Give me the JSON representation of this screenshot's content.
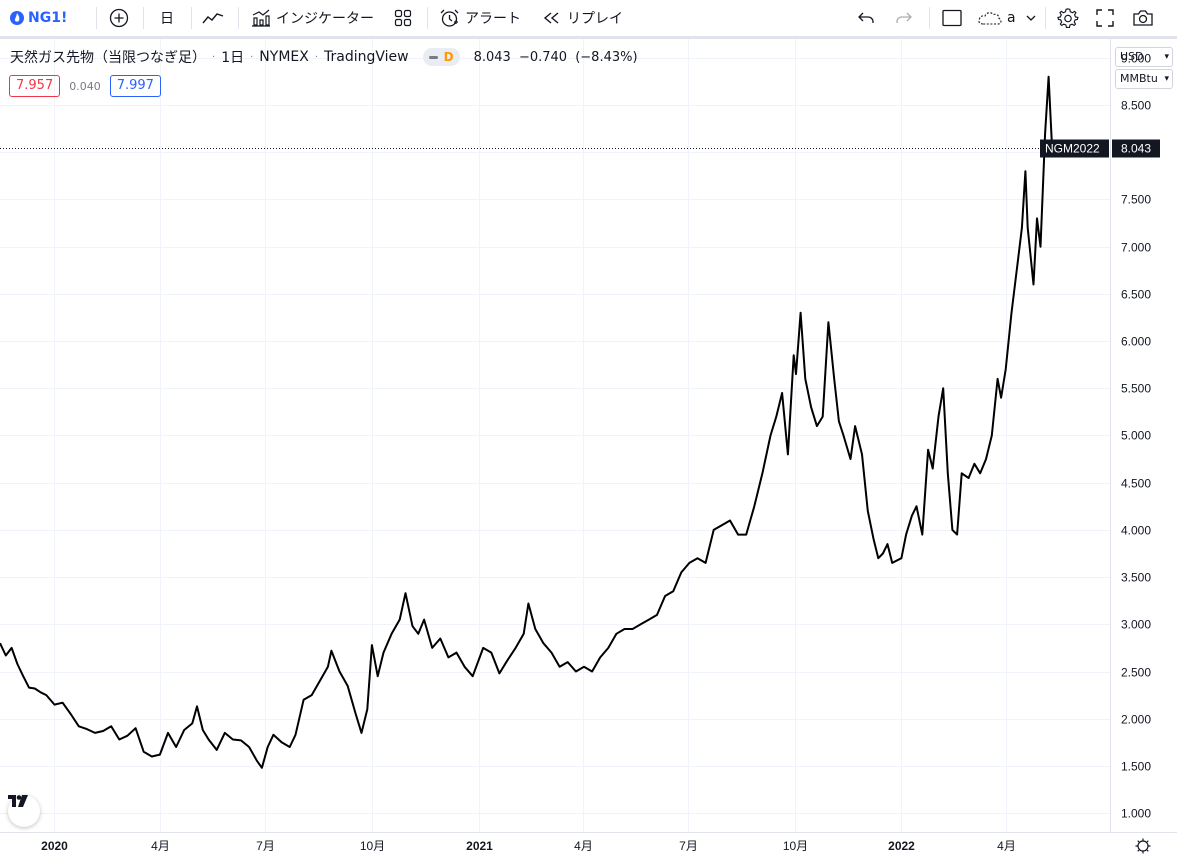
{
  "toolbar": {
    "symbol": "NG1!",
    "interval": "日",
    "indicators_label": "インジケーター",
    "alert_label": "アラート",
    "replay_label": "リプレイ",
    "layout_name": "a"
  },
  "legend": {
    "title": "天然ガス先物（当限つなぎ足）",
    "interval": "1日",
    "exchange": "NYMEX",
    "source": "TradingView",
    "badge": "D",
    "last_value": "8.043",
    "change": "−0.740",
    "change_pct": "(−8.43%)"
  },
  "quote": {
    "bid": "7.957",
    "spread": "0.040",
    "ask": "7.997"
  },
  "units": {
    "currency": "USD",
    "unit": "MMBtu"
  },
  "price_label": {
    "name": "NGM2022",
    "value": "8.043"
  },
  "colors": {
    "line": "#000000",
    "bid": "#f23645",
    "ask": "#2962ff",
    "accent": "#2962ff",
    "label_bg": "#131722"
  },
  "chart_data": {
    "type": "line",
    "title": "天然ガス先物（当限つなぎ足）",
    "xlabel": "",
    "ylabel": "",
    "x_range": [
      "2019-11-15",
      "2022-06-30"
    ],
    "ylim": [
      0.8,
      9.2
    ],
    "y_ticks": [
      1.0,
      1.5,
      2.0,
      2.5,
      3.0,
      3.5,
      4.0,
      4.5,
      5.0,
      5.5,
      6.0,
      6.5,
      7.0,
      7.5,
      8.0,
      8.5,
      9.0
    ],
    "y_tick_labels": [
      "1.000",
      "1.500",
      "2.000",
      "2.500",
      "3.000",
      "3.500",
      "4.000",
      "4.500",
      "5.000",
      "5.500",
      "6.000",
      "6.500",
      "7.000",
      "7.500",
      "8.000",
      "8.500",
      "9.000"
    ],
    "x_ticks": [
      {
        "date": "2020-01-01",
        "label": "2020",
        "major": true
      },
      {
        "date": "2020-04-01",
        "label": "4月",
        "major": false
      },
      {
        "date": "2020-07-01",
        "label": "7月",
        "major": false
      },
      {
        "date": "2020-10-01",
        "label": "10月",
        "major": false
      },
      {
        "date": "2021-01-01",
        "label": "2021",
        "major": true
      },
      {
        "date": "2021-04-01",
        "label": "4月",
        "major": false
      },
      {
        "date": "2021-07-01",
        "label": "7月",
        "major": false
      },
      {
        "date": "2021-10-01",
        "label": "10月",
        "major": false
      },
      {
        "date": "2022-01-01",
        "label": "2022",
        "major": true
      },
      {
        "date": "2022-04-01",
        "label": "4月",
        "major": false
      }
    ],
    "last_price": 8.043,
    "grid": true,
    "series": [
      {
        "name": "",
        "points": [
          [
            "2019-11-15",
            2.8
          ],
          [
            "2019-11-20",
            2.67
          ],
          [
            "2019-11-25",
            2.75
          ],
          [
            "2019-11-30",
            2.58
          ],
          [
            "2019-12-05",
            2.45
          ],
          [
            "2019-12-10",
            2.33
          ],
          [
            "2019-12-15",
            2.32
          ],
          [
            "2019-12-20",
            2.28
          ],
          [
            "2019-12-25",
            2.25
          ],
          [
            "2020-01-01",
            2.15
          ],
          [
            "2020-01-08",
            2.17
          ],
          [
            "2020-01-15",
            2.05
          ],
          [
            "2020-01-22",
            1.92
          ],
          [
            "2020-01-29",
            1.89
          ],
          [
            "2020-02-05",
            1.85
          ],
          [
            "2020-02-12",
            1.87
          ],
          [
            "2020-02-19",
            1.92
          ],
          [
            "2020-02-26",
            1.78
          ],
          [
            "2020-03-04",
            1.82
          ],
          [
            "2020-03-11",
            1.9
          ],
          [
            "2020-03-18",
            1.65
          ],
          [
            "2020-03-25",
            1.6
          ],
          [
            "2020-04-01",
            1.62
          ],
          [
            "2020-04-08",
            1.85
          ],
          [
            "2020-04-15",
            1.7
          ],
          [
            "2020-04-22",
            1.88
          ],
          [
            "2020-04-29",
            1.95
          ],
          [
            "2020-05-03",
            2.13
          ],
          [
            "2020-05-08",
            1.88
          ],
          [
            "2020-05-13",
            1.78
          ],
          [
            "2020-05-20",
            1.67
          ],
          [
            "2020-05-27",
            1.85
          ],
          [
            "2020-06-03",
            1.78
          ],
          [
            "2020-06-10",
            1.77
          ],
          [
            "2020-06-17",
            1.7
          ],
          [
            "2020-06-24",
            1.55
          ],
          [
            "2020-06-28",
            1.48
          ],
          [
            "2020-07-03",
            1.7
          ],
          [
            "2020-07-08",
            1.83
          ],
          [
            "2020-07-15",
            1.75
          ],
          [
            "2020-07-22",
            1.7
          ],
          [
            "2020-07-27",
            1.83
          ],
          [
            "2020-08-03",
            2.2
          ],
          [
            "2020-08-10",
            2.25
          ],
          [
            "2020-08-17",
            2.4
          ],
          [
            "2020-08-24",
            2.55
          ],
          [
            "2020-08-27",
            2.72
          ],
          [
            "2020-09-03",
            2.5
          ],
          [
            "2020-09-10",
            2.35
          ],
          [
            "2020-09-17",
            2.05
          ],
          [
            "2020-09-22",
            1.85
          ],
          [
            "2020-09-27",
            2.1
          ],
          [
            "2020-10-01",
            2.78
          ],
          [
            "2020-10-06",
            2.45
          ],
          [
            "2020-10-11",
            2.7
          ],
          [
            "2020-10-18",
            2.9
          ],
          [
            "2020-10-25",
            3.05
          ],
          [
            "2020-10-30",
            3.33
          ],
          [
            "2020-11-05",
            2.98
          ],
          [
            "2020-11-10",
            2.9
          ],
          [
            "2020-11-15",
            3.05
          ],
          [
            "2020-11-22",
            2.75
          ],
          [
            "2020-11-29",
            2.85
          ],
          [
            "2020-12-06",
            2.65
          ],
          [
            "2020-12-13",
            2.7
          ],
          [
            "2020-12-20",
            2.55
          ],
          [
            "2020-12-27",
            2.45
          ],
          [
            "2021-01-05",
            2.75
          ],
          [
            "2021-01-12",
            2.7
          ],
          [
            "2021-01-19",
            2.48
          ],
          [
            "2021-01-26",
            2.62
          ],
          [
            "2021-02-02",
            2.75
          ],
          [
            "2021-02-09",
            2.9
          ],
          [
            "2021-02-13",
            3.22
          ],
          [
            "2021-02-19",
            2.95
          ],
          [
            "2021-02-26",
            2.8
          ],
          [
            "2021-03-05",
            2.7
          ],
          [
            "2021-03-12",
            2.55
          ],
          [
            "2021-03-19",
            2.6
          ],
          [
            "2021-03-26",
            2.5
          ],
          [
            "2021-04-02",
            2.55
          ],
          [
            "2021-04-09",
            2.5
          ],
          [
            "2021-04-16",
            2.65
          ],
          [
            "2021-04-23",
            2.75
          ],
          [
            "2021-04-30",
            2.9
          ],
          [
            "2021-05-07",
            2.95
          ],
          [
            "2021-05-14",
            2.95
          ],
          [
            "2021-05-21",
            3.0
          ],
          [
            "2021-05-28",
            3.05
          ],
          [
            "2021-06-04",
            3.1
          ],
          [
            "2021-06-11",
            3.3
          ],
          [
            "2021-06-18",
            3.35
          ],
          [
            "2021-06-25",
            3.55
          ],
          [
            "2021-07-02",
            3.65
          ],
          [
            "2021-07-09",
            3.7
          ],
          [
            "2021-07-16",
            3.65
          ],
          [
            "2021-07-23",
            4.0
          ],
          [
            "2021-07-30",
            4.05
          ],
          [
            "2021-08-06",
            4.1
          ],
          [
            "2021-08-13",
            3.95
          ],
          [
            "2021-08-20",
            3.95
          ],
          [
            "2021-08-27",
            4.25
          ],
          [
            "2021-09-03",
            4.6
          ],
          [
            "2021-09-10",
            5.0
          ],
          [
            "2021-09-15",
            5.2
          ],
          [
            "2021-09-20",
            5.45
          ],
          [
            "2021-09-25",
            4.8
          ],
          [
            "2021-09-30",
            5.85
          ],
          [
            "2021-10-02",
            5.65
          ],
          [
            "2021-10-06",
            6.3
          ],
          [
            "2021-10-10",
            5.6
          ],
          [
            "2021-10-15",
            5.3
          ],
          [
            "2021-10-20",
            5.1
          ],
          [
            "2021-10-25",
            5.2
          ],
          [
            "2021-10-30",
            6.2
          ],
          [
            "2021-11-04",
            5.6
          ],
          [
            "2021-11-08",
            5.15
          ],
          [
            "2021-11-12",
            5.0
          ],
          [
            "2021-11-18",
            4.75
          ],
          [
            "2021-11-22",
            5.1
          ],
          [
            "2021-11-28",
            4.8
          ],
          [
            "2021-12-03",
            4.2
          ],
          [
            "2021-12-08",
            3.9
          ],
          [
            "2021-12-12",
            3.7
          ],
          [
            "2021-12-16",
            3.75
          ],
          [
            "2021-12-20",
            3.85
          ],
          [
            "2021-12-24",
            3.65
          ],
          [
            "2022-01-01",
            3.7
          ],
          [
            "2022-01-05",
            3.95
          ],
          [
            "2022-01-10",
            4.15
          ],
          [
            "2022-01-14",
            4.25
          ],
          [
            "2022-01-19",
            3.95
          ],
          [
            "2022-01-24",
            4.85
          ],
          [
            "2022-01-28",
            4.65
          ],
          [
            "2022-02-02",
            5.2
          ],
          [
            "2022-02-06",
            5.5
          ],
          [
            "2022-02-10",
            4.6
          ],
          [
            "2022-02-14",
            4.0
          ],
          [
            "2022-02-18",
            3.95
          ],
          [
            "2022-02-22",
            4.6
          ],
          [
            "2022-02-28",
            4.55
          ],
          [
            "2022-03-05",
            4.7
          ],
          [
            "2022-03-10",
            4.6
          ],
          [
            "2022-03-15",
            4.75
          ],
          [
            "2022-03-20",
            5.0
          ],
          [
            "2022-03-25",
            5.6
          ],
          [
            "2022-03-28",
            5.4
          ],
          [
            "2022-04-01",
            5.7
          ],
          [
            "2022-04-06",
            6.3
          ],
          [
            "2022-04-11",
            6.8
          ],
          [
            "2022-04-15",
            7.2
          ],
          [
            "2022-04-18",
            7.8
          ],
          [
            "2022-04-20",
            7.2
          ],
          [
            "2022-04-25",
            6.6
          ],
          [
            "2022-04-28",
            7.3
          ],
          [
            "2022-05-01",
            7.0
          ],
          [
            "2022-05-05",
            8.2
          ],
          [
            "2022-05-08",
            8.8
          ],
          [
            "2022-05-11",
            8.04
          ]
        ]
      }
    ]
  }
}
